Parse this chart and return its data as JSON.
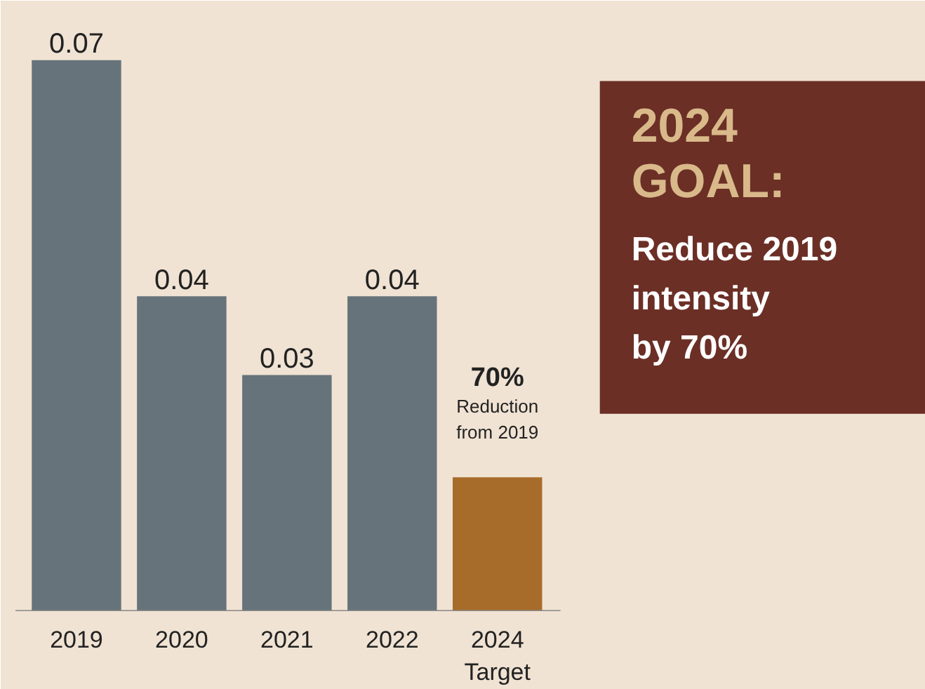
{
  "chart_data": {
    "type": "bar",
    "categories": [
      "2019",
      "2020",
      "2021",
      "2022",
      "2024\nTarget"
    ],
    "values": [
      0.07,
      0.04,
      0.03,
      0.04,
      0.017
    ],
    "colors": [
      "#67737b",
      "#67737b",
      "#67737b",
      "#67737b",
      "#a86c2a"
    ],
    "value_labels": [
      "0.07",
      "0.04",
      "0.03",
      "0.04",
      null
    ],
    "annotations": [
      "70%",
      "Reduction\nfrom 2019",
      "2024\nGOAL:",
      "Reduce 2019\nintensity\nby 70%"
    ],
    "tick_labels": "x",
    "grid": false
  }
}
